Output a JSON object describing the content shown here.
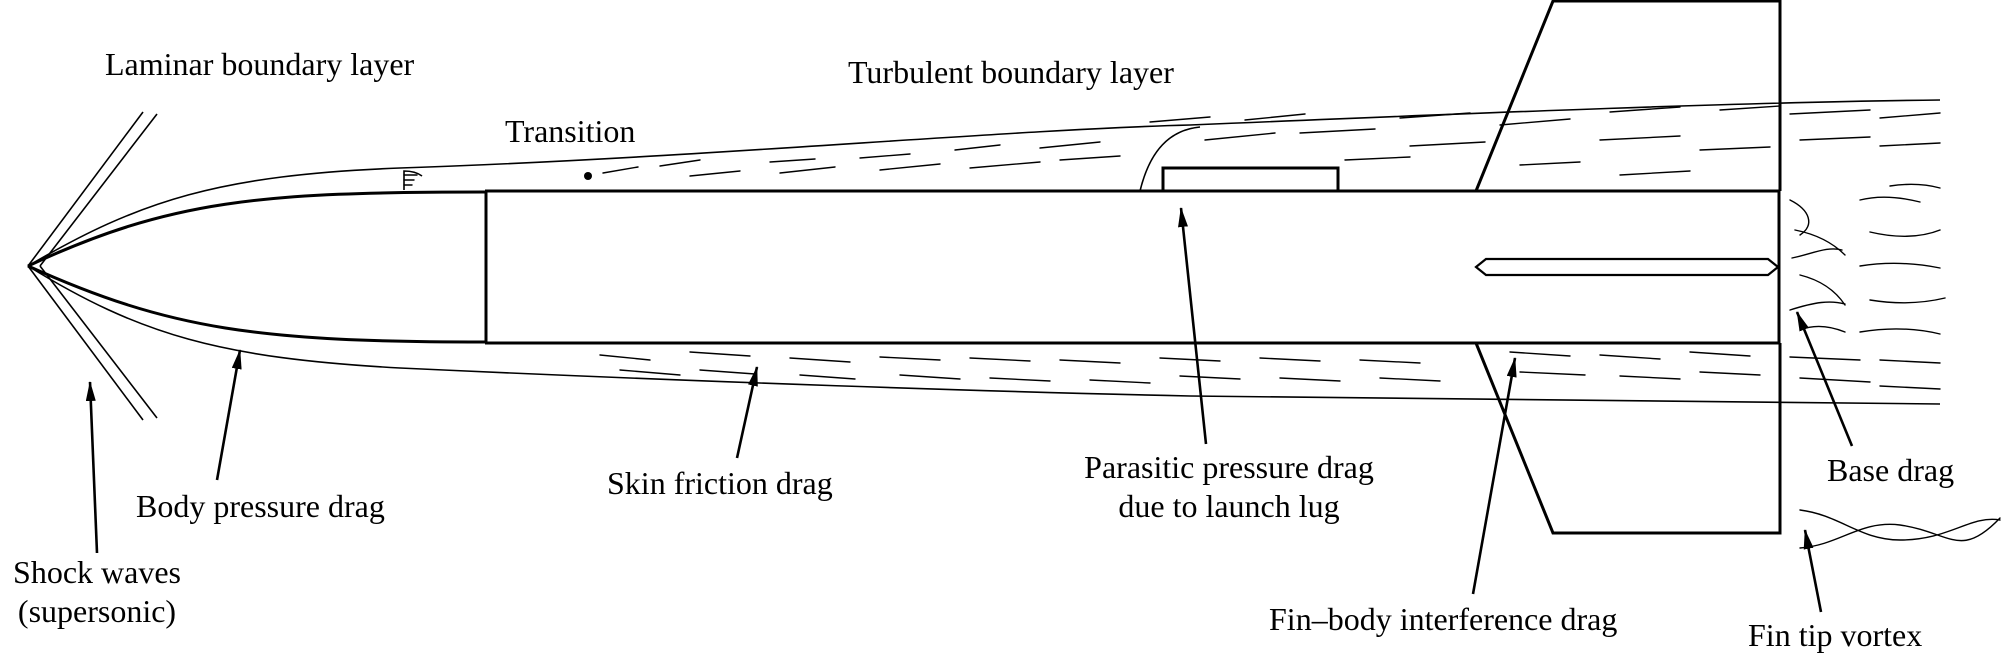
{
  "labels": {
    "laminar": "Laminar boundary layer",
    "turbulent": "Turbulent boundary layer",
    "transition": "Transition",
    "shock_line1": "Shock waves",
    "shock_line2": "(supersonic)",
    "body_pressure": "Body pressure drag",
    "skin_friction": "Skin friction drag",
    "parasitic_line1": "Parasitic pressure drag",
    "parasitic_line2": "due to launch lug",
    "fin_body": "Fin–body interference drag",
    "base_drag": "Base drag",
    "fin_tip": "Fin tip vortex"
  }
}
